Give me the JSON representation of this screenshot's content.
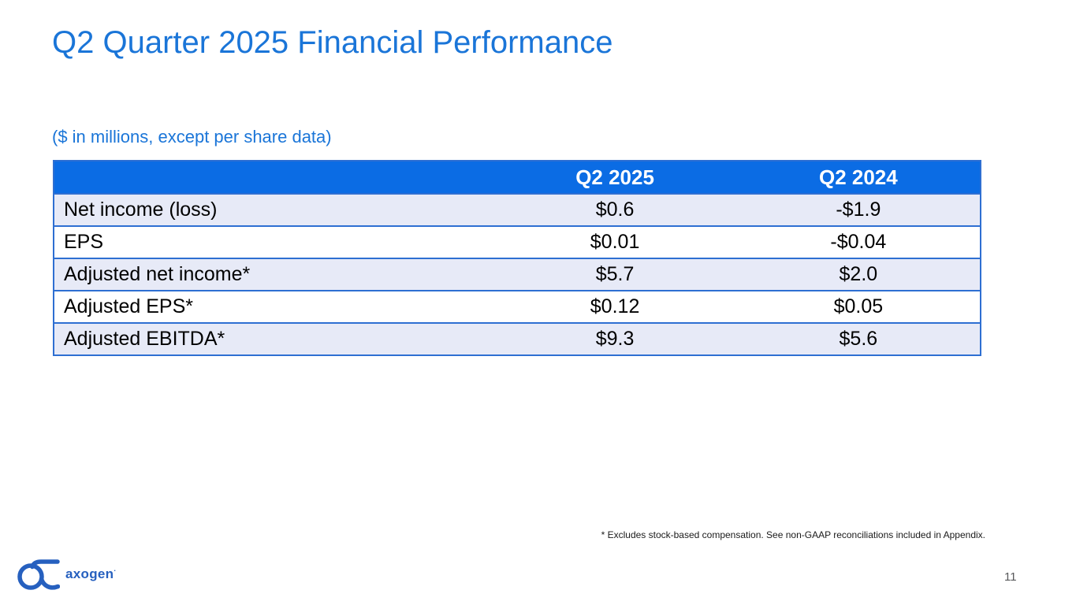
{
  "slide": {
    "title": "Q2 Quarter 2025 Financial Performance",
    "subtitle": "($ in millions, except per share data)",
    "footnote": "* Excludes stock-based compensation. See non-GAAP reconciliations included in Appendix.",
    "page_number": "11",
    "logo": {
      "text": "axogen",
      "mark": "·"
    }
  },
  "colors": {
    "title_blue": "#1a75d8",
    "header_bg": "#0b6ce4",
    "row_alt_bg": "#e7eaf7",
    "table_border": "#2e6fd2",
    "logo_blue": "#2660bf",
    "page_number_gray": "#58595b"
  },
  "chart_data": {
    "type": "table",
    "title": "Q2 Quarter 2025 Financial Performance",
    "units_note": "($ in millions, except per share data)",
    "columns": [
      "",
      "Q2 2025",
      "Q2 2024"
    ],
    "rows": [
      [
        "Net income (loss)",
        "$0.6",
        "-$1.9"
      ],
      [
        "EPS",
        "$0.01",
        "-$0.04"
      ],
      [
        "Adjusted net income*",
        "$5.7",
        "$2.0"
      ],
      [
        "Adjusted EPS*",
        "$0.12",
        "$0.05"
      ],
      [
        "Adjusted EBITDA*",
        "$9.3",
        "$5.6"
      ]
    ]
  }
}
